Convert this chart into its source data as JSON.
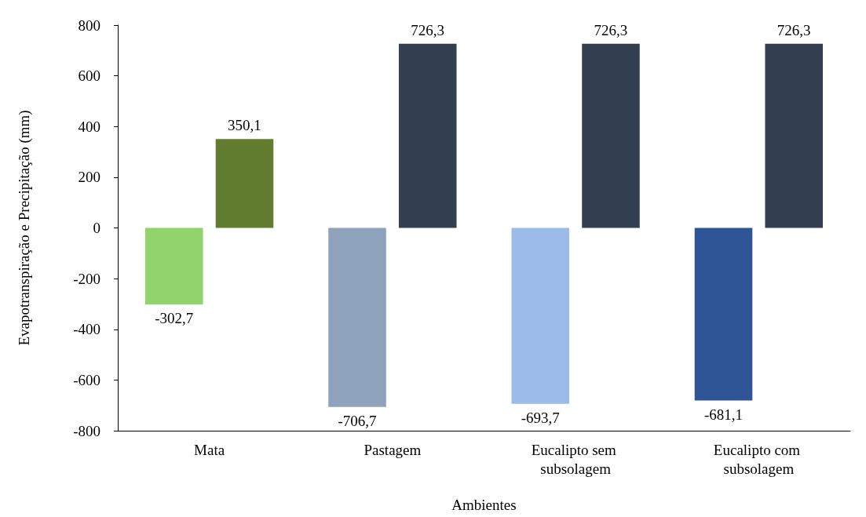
{
  "chart_data": {
    "type": "bar",
    "xlabel": "Ambientes",
    "ylabel": "Evapotranspiração e Precipitação (mm)",
    "categories": [
      "Mata",
      "Pastagem",
      "Eucalipto sem subsolagem",
      "Eucalipto com subsolagem"
    ],
    "series": [
      {
        "values": [
          -302.7,
          -706.7,
          -693.7,
          -681.1
        ],
        "colors": [
          "#92d36e",
          "#8ea2bb",
          "#9dbbe9",
          "#2f5597"
        ],
        "value_labels": [
          "-302,7",
          "-706,7",
          "-693,7",
          "-681,1"
        ]
      },
      {
        "values": [
          350.1,
          726.3,
          726.3,
          726.3
        ],
        "colors": [
          "#627d2f",
          "#333f50",
          "#333f50",
          "#333f50"
        ],
        "value_labels": [
          "350,1",
          "726,3",
          "726,3",
          "726,3"
        ]
      }
    ],
    "ylim": [
      -800,
      800
    ],
    "yticks": [
      -800,
      -600,
      -400,
      -200,
      0,
      200,
      400,
      600,
      800
    ],
    "grid": false
  }
}
